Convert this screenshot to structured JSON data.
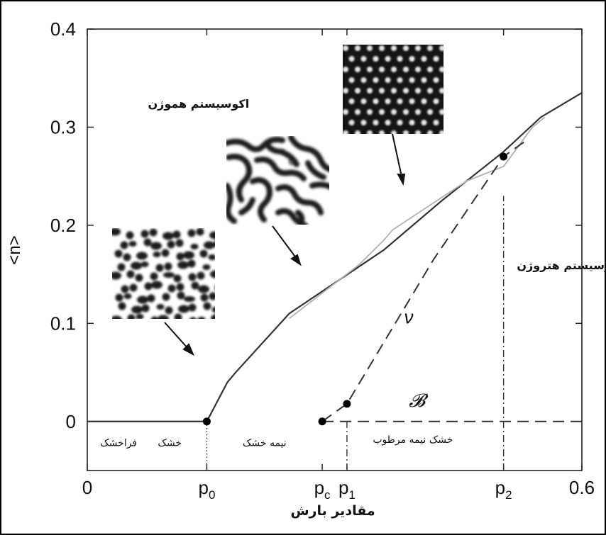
{
  "chart_data": {
    "type": "line",
    "xlabel": "مقادیر بارش",
    "ylabel": "<n>",
    "xlim": [
      0,
      0.6
    ],
    "ylim": [
      -0.05,
      0.4
    ],
    "x_ticks": [
      {
        "value": 0,
        "label": "0"
      },
      {
        "value": 0.145,
        "label": "p",
        "sub": "0"
      },
      {
        "value": 0.285,
        "label": "p",
        "sub": "c"
      },
      {
        "value": 0.315,
        "label": "p",
        "sub": "1"
      },
      {
        "value": 0.505,
        "label": "p",
        "sub": "2"
      },
      {
        "value": 0.6,
        "label": "0.6"
      }
    ],
    "y_ticks": [
      {
        "value": 0,
        "label": "0"
      },
      {
        "value": 0.1,
        "label": "0.1"
      },
      {
        "value": 0.2,
        "label": "0.2"
      },
      {
        "value": 0.3,
        "label": "0.3"
      },
      {
        "value": 0.4,
        "label": "0.4"
      }
    ],
    "series": [
      {
        "style": "solid",
        "color": "#333333",
        "x": [
          0,
          0.145,
          0.17,
          0.18,
          0.245,
          0.36,
          0.43,
          0.505,
          0.55,
          0.6
        ],
        "y": [
          0,
          0,
          0.04,
          0.05,
          0.11,
          0.175,
          0.225,
          0.275,
          0.31,
          0.335
        ]
      },
      {
        "style": "light",
        "color": "#b0b0b0",
        "x": [
          0.245,
          0.33,
          0.36,
          0.37,
          0.46,
          0.505,
          0.54,
          0.555
        ],
        "y": [
          0.105,
          0.16,
          0.185,
          0.195,
          0.245,
          0.26,
          0.3,
          0.31
        ]
      },
      {
        "style": "dashed",
        "color": "#333333",
        "name": "ν",
        "x": [
          0.285,
          0.315,
          0.42,
          0.505,
          0.53
        ],
        "y": [
          0,
          0.018,
          0.165,
          0.27,
          0.285
        ]
      },
      {
        "style": "dashed",
        "color": "#333333",
        "name": "𝓑",
        "x": [
          0.285,
          0.6
        ],
        "y": [
          0,
          0
        ]
      }
    ],
    "points": [
      {
        "x": 0.145,
        "y": 0
      },
      {
        "x": 0.285,
        "y": 0
      },
      {
        "x": 0.315,
        "y": 0.018
      },
      {
        "x": 0.505,
        "y": 0.27
      }
    ],
    "vlines": [
      {
        "x": 0.145,
        "style": "dotted",
        "y_range": [
          -0.05,
          0
        ]
      },
      {
        "x": 0.315,
        "style": "dashdot",
        "y_range": [
          -0.05,
          0
        ]
      },
      {
        "x": 0.505,
        "style": "dashdot",
        "y_range": [
          -0.05,
          0.23
        ]
      }
    ],
    "annotations": [
      {
        "text": "اکوسیستم هموژن",
        "x": 0.135,
        "y": 0.32,
        "bold": true,
        "size": 16
      },
      {
        "text": "اکوسیستم هتروژن",
        "x": 0.585,
        "y": 0.155,
        "bold": true,
        "size": 16
      },
      {
        "text": "ν",
        "x": 0.39,
        "y": 0.1,
        "italic": true,
        "size": 24
      },
      {
        "text": "𝓑",
        "x": 0.4,
        "y": 0.015,
        "italic": true,
        "size": 24
      },
      {
        "text": "فراخشک",
        "x": 0.038,
        "y": -0.025,
        "size": 14
      },
      {
        "text": "خشک",
        "x": 0.1,
        "y": -0.025,
        "size": 14
      },
      {
        "text": "نیمه خشک",
        "x": 0.215,
        "y": -0.025,
        "size": 14
      },
      {
        "text": "خشک نیمه مرطوب",
        "x": 0.395,
        "y": -0.022,
        "size": 14
      }
    ],
    "insets": [
      {
        "pattern": "spots",
        "arrow_to_x": 0.17,
        "arrow_to_y": 0.07
      },
      {
        "pattern": "labyrinth",
        "arrow_to_x": 0.36,
        "arrow_to_y": 0.165
      },
      {
        "pattern": "gaps",
        "arrow_to_x": 0.47,
        "arrow_to_y": 0.24
      }
    ]
  }
}
